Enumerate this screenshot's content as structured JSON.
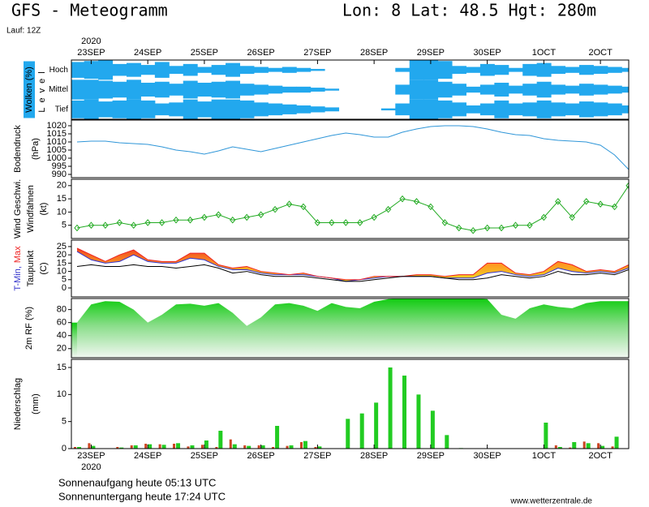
{
  "header": {
    "title": "GFS - Meteogramm",
    "location": "Lon: 8 Lat: 48.5 Hgt: 280m",
    "run": "Lauf: 12Z"
  },
  "chart_data": [
    {
      "type": "heatmap",
      "ylabel": "Wolken (%)",
      "sublabel": "Level",
      "color": "#22a8ee",
      "year": "2020",
      "xaxis_position": "top",
      "xlim": [
        -0.35,
        9.5
      ],
      "xticks": [
        {
          "value": 0,
          "label": "23SEP"
        },
        {
          "value": 1,
          "label": "24SEP"
        },
        {
          "value": 2,
          "label": "25SEP"
        },
        {
          "value": 3,
          "label": "26SEP"
        },
        {
          "value": 4,
          "label": "27SEP"
        },
        {
          "value": 5,
          "label": "28SEP"
        },
        {
          "value": 6,
          "label": "29SEP"
        },
        {
          "value": 7,
          "label": "30SEP"
        },
        {
          "value": 8,
          "label": "1OCT"
        },
        {
          "value": 9,
          "label": "2OCT"
        }
      ],
      "x": [
        -0.25,
        0,
        0.25,
        0.5,
        0.75,
        1,
        1.25,
        1.5,
        1.75,
        2,
        2.25,
        2.5,
        2.75,
        3,
        3.25,
        3.5,
        3.75,
        4,
        4.25,
        4.5,
        4.75,
        5,
        5.25,
        5.5,
        5.75,
        6,
        6.25,
        6.5,
        6.75,
        7,
        7.25,
        7.5,
        7.75,
        8,
        8.25,
        8.5,
        8.75,
        9,
        9.25,
        9.5
      ],
      "series": [
        {
          "name": "Hoch",
          "values": [
            80,
            90,
            100,
            60,
            70,
            50,
            80,
            40,
            60,
            30,
            50,
            70,
            40,
            30,
            20,
            30,
            20,
            10,
            0,
            0,
            0,
            0,
            0,
            20,
            100,
            100,
            90,
            40,
            30,
            60,
            50,
            20,
            60,
            70,
            40,
            30,
            50,
            40,
            30,
            20
          ]
        },
        {
          "name": "Mittel",
          "values": [
            100,
            100,
            90,
            80,
            100,
            70,
            80,
            60,
            90,
            70,
            80,
            90,
            60,
            50,
            40,
            30,
            30,
            20,
            10,
            0,
            0,
            0,
            0,
            50,
            100,
            100,
            80,
            60,
            30,
            50,
            70,
            40,
            60,
            80,
            50,
            40,
            60,
            50,
            40,
            30
          ]
        },
        {
          "name": "Tief",
          "values": [
            90,
            100,
            80,
            90,
            100,
            90,
            60,
            70,
            100,
            80,
            100,
            100,
            90,
            70,
            60,
            50,
            40,
            30,
            20,
            0,
            0,
            0,
            10,
            60,
            100,
            100,
            90,
            70,
            40,
            60,
            90,
            60,
            70,
            90,
            70,
            60,
            80,
            70,
            60,
            40
          ]
        }
      ]
    },
    {
      "type": "line",
      "ylabel": "Bodendruck",
      "unit": "(hPa)",
      "color": "#2f96d8",
      "xlim": [
        -0.35,
        9.5
      ],
      "ylim": [
        988,
        1023.5
      ],
      "yticks": [
        990,
        995,
        1000,
        1005,
        1010,
        1015,
        1020
      ],
      "x": [
        -0.25,
        0,
        0.25,
        0.5,
        0.75,
        1,
        1.25,
        1.5,
        1.75,
        2,
        2.25,
        2.5,
        2.75,
        3,
        3.25,
        3.5,
        3.75,
        4,
        4.25,
        4.5,
        4.75,
        5,
        5.25,
        5.5,
        5.75,
        6,
        6.25,
        6.5,
        6.75,
        7,
        7.25,
        7.5,
        7.75,
        8,
        8.25,
        8.5,
        8.75,
        9,
        9.25,
        9.5
      ],
      "values": [
        1010,
        1010.5,
        1010.5,
        1009.5,
        1009,
        1008.5,
        1007,
        1005,
        1004,
        1002.5,
        1004.5,
        1007,
        1005.5,
        1004,
        1006,
        1008,
        1010,
        1012,
        1014,
        1015.5,
        1014.5,
        1013,
        1013,
        1016,
        1018,
        1019.5,
        1020,
        1020,
        1019.5,
        1018,
        1016,
        1014.5,
        1014,
        1012,
        1011,
        1010.5,
        1010,
        1008,
        1002,
        993
      ]
    },
    {
      "type": "line",
      "ylabel": "Windfahnen",
      "unit": "(kt)",
      "markers": true,
      "xlim": [
        -0.35,
        9.5
      ],
      "ylim": [
        0,
        22.4
      ],
      "yticks": [
        5,
        10,
        15,
        20
      ],
      "x": [
        -0.25,
        0,
        0.25,
        0.5,
        0.75,
        1,
        1.25,
        1.5,
        1.75,
        2,
        2.25,
        2.5,
        2.75,
        3,
        3.25,
        3.5,
        3.75,
        4,
        4.25,
        4.5,
        4.75,
        5,
        5.25,
        5.5,
        5.75,
        6,
        6.25,
        6.5,
        6.75,
        7,
        7.25,
        7.5,
        7.75,
        8,
        8.25,
        8.5,
        8.75,
        9,
        9.25,
        9.5
      ],
      "series": [
        {
          "name": "Wind Geschwi.",
          "color": "#22aa22",
          "values": [
            4,
            5,
            5,
            6,
            5,
            6,
            6,
            7,
            7,
            8,
            9,
            7,
            8,
            9,
            11,
            13,
            12,
            6,
            6,
            6,
            6,
            8,
            11,
            15,
            14,
            12,
            6,
            4,
            3,
            4,
            4,
            5,
            5,
            8,
            14,
            8,
            14,
            13,
            12,
            20
          ]
        }
      ]
    },
    {
      "type": "range",
      "unit": "(C)",
      "xlim": [
        -0.35,
        9.5
      ],
      "ylim": [
        -5.4,
        28.9
      ],
      "yticks": [
        0,
        5,
        10,
        15,
        20,
        25
      ],
      "x": [
        -0.25,
        0,
        0.25,
        0.5,
        0.75,
        1,
        1.25,
        1.5,
        1.75,
        2,
        2.25,
        2.5,
        2.75,
        3,
        3.25,
        3.5,
        3.75,
        4,
        4.25,
        4.5,
        4.75,
        5,
        5.25,
        5.5,
        5.75,
        6,
        6.25,
        6.5,
        6.75,
        7,
        7.25,
        7.5,
        7.75,
        8,
        8.25,
        8.5,
        8.75,
        9,
        9.25,
        9.5
      ],
      "series": [
        {
          "name": "T-Min,",
          "color": "#3333cc",
          "values": [
            22,
            17,
            15,
            16,
            20,
            16,
            15,
            15,
            18,
            17,
            13,
            11,
            11,
            9,
            8,
            8,
            8,
            7,
            6,
            4,
            5,
            6,
            7,
            7,
            7,
            7,
            6,
            6,
            6,
            9,
            10,
            8,
            7,
            8,
            12,
            10,
            9,
            10,
            9,
            12
          ]
        },
        {
          "name": "Max",
          "color": "#ee2222",
          "values": [
            24,
            20,
            16,
            20,
            23,
            17,
            16,
            16,
            21,
            21,
            14,
            12,
            13,
            10,
            9,
            8,
            9,
            7,
            6,
            5,
            5,
            7,
            7,
            7,
            8,
            8,
            7,
            8,
            8,
            15,
            15,
            9,
            8,
            10,
            16,
            14,
            10,
            11,
            10,
            14
          ]
        },
        {
          "name": "Taupunkt",
          "color": "#000000",
          "values": [
            13,
            14,
            13,
            13,
            14,
            13,
            13,
            12,
            13,
            14,
            12,
            9,
            10,
            8,
            7,
            7,
            7,
            6,
            5,
            4,
            4,
            5,
            6,
            7,
            7,
            7,
            6,
            5,
            5,
            6,
            8,
            7,
            6,
            7,
            10,
            8,
            8,
            9,
            8,
            11
          ]
        }
      ]
    },
    {
      "type": "area",
      "ylabel": "2m RF (%)",
      "color": "#22cc22",
      "xlim": [
        -0.35,
        9.5
      ],
      "ylim": [
        6,
        97
      ],
      "yticks": [
        20,
        40,
        60,
        80
      ],
      "x": [
        -0.25,
        0,
        0.25,
        0.5,
        0.75,
        1,
        1.25,
        1.5,
        1.75,
        2,
        2.25,
        2.5,
        2.75,
        3,
        3.25,
        3.5,
        3.75,
        4,
        4.25,
        4.5,
        4.75,
        5,
        5.25,
        5.5,
        5.75,
        6,
        6.25,
        6.5,
        6.75,
        7,
        7.25,
        7.5,
        7.75,
        8,
        8.25,
        8.5,
        8.75,
        9,
        9.25,
        9.5
      ],
      "values": [
        60,
        88,
        93,
        92,
        80,
        60,
        72,
        88,
        89,
        86,
        90,
        75,
        55,
        68,
        88,
        90,
        86,
        78,
        90,
        84,
        82,
        92,
        96,
        97,
        97,
        97,
        97,
        97,
        97,
        96,
        72,
        66,
        82,
        88,
        84,
        82,
        90,
        93,
        93,
        93
      ]
    },
    {
      "type": "bar",
      "ylabel": "Niederschlag",
      "unit": "(mm)",
      "year": "2020",
      "xaxis_position": "bottom",
      "xlim": [
        -0.35,
        9.5
      ],
      "ylim": [
        0,
        16.5
      ],
      "yticks": [
        0,
        5,
        10,
        15
      ],
      "xticks": [
        {
          "value": 0,
          "label": "23SEP"
        },
        {
          "value": 1,
          "label": "24SEP"
        },
        {
          "value": 2,
          "label": "25SEP"
        },
        {
          "value": 3,
          "label": "26SEP"
        },
        {
          "value": 4,
          "label": "27SEP"
        },
        {
          "value": 5,
          "label": "28SEP"
        },
        {
          "value": 6,
          "label": "29SEP"
        },
        {
          "value": 7,
          "label": "30SEP"
        },
        {
          "value": 8,
          "label": "1OCT"
        },
        {
          "value": 9,
          "label": "2OCT"
        }
      ],
      "x": [
        -0.25,
        0,
        0.25,
        0.5,
        0.75,
        1,
        1.25,
        1.5,
        1.75,
        2,
        2.25,
        2.5,
        2.75,
        3,
        3.25,
        3.5,
        3.75,
        4,
        4.25,
        4.5,
        4.75,
        5,
        5.25,
        5.5,
        5.75,
        6,
        6.25,
        6.5,
        6.75,
        7,
        7.25,
        7.5,
        7.75,
        8,
        8.25,
        8.5,
        8.75,
        9,
        9.25,
        9.5
      ],
      "series": [
        {
          "color": "#22cc22",
          "values": [
            0.3,
            0.5,
            0,
            0.2,
            0.6,
            0.8,
            0.7,
            1,
            0.6,
            1.5,
            3.3,
            0.8,
            0.5,
            0.6,
            4.2,
            0.6,
            1.4,
            0.4,
            0,
            5.5,
            6.5,
            8.5,
            15,
            13.5,
            10,
            7,
            2.5,
            0.1,
            0,
            0,
            0,
            0,
            0,
            4.8,
            0.3,
            1.2,
            1,
            0.5,
            2.2,
            2.8
          ]
        },
        {
          "color": "#cc4422",
          "values": [
            0.3,
            1,
            0,
            0.3,
            0.6,
            0.9,
            0.8,
            0.9,
            0.4,
            0.7,
            0.3,
            1.7,
            0.6,
            0.6,
            0.3,
            0.5,
            1.2,
            0.3,
            0,
            0,
            0,
            0,
            0,
            0,
            0,
            0,
            0,
            0,
            0,
            0,
            0,
            0,
            0,
            0,
            0.6,
            0.2,
            1.3,
            1,
            0.4,
            0
          ]
        }
      ]
    }
  ],
  "footer": {
    "sunrise": "Sonnenaufgang heute 05:13 UTC",
    "sunset": "Sonnenuntergang heute 17:24 UTC",
    "source": "www.wetterzentrale.de"
  }
}
